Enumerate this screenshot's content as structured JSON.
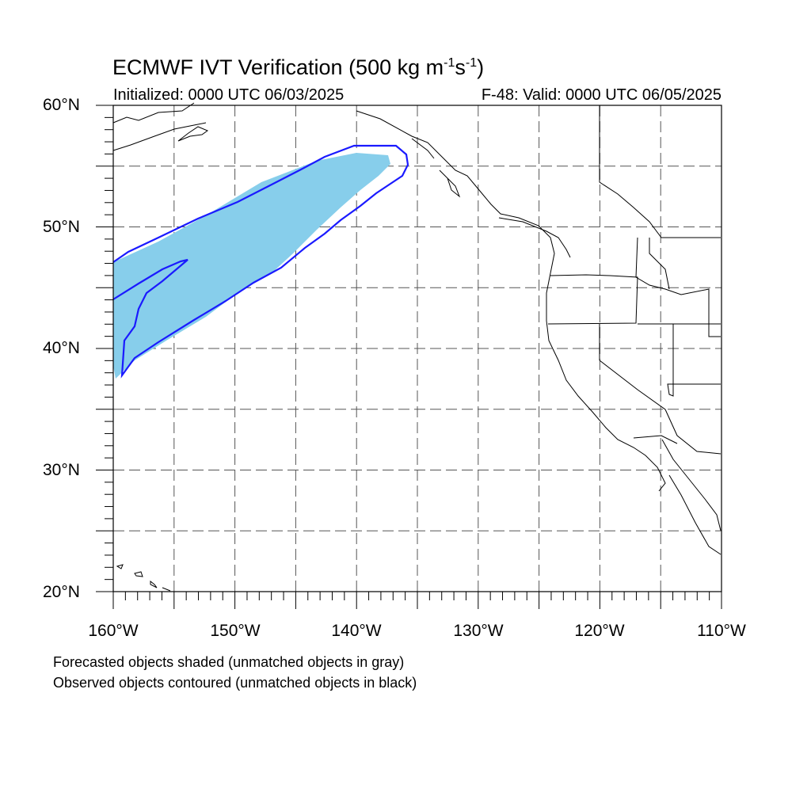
{
  "header": {
    "title_prefix": "ECMWF IVT Verification (500 kg m",
    "title_exp1": "-1",
    "title_mid": "s",
    "title_exp2": "-1",
    "title_suffix": ")",
    "initialized": "Initialized: 0000 UTC 06/03/2025",
    "valid": "F-48: Valid: 0000 UTC 06/05/2025"
  },
  "axes": {
    "lat_labels": [
      "60°N",
      "50°N",
      "40°N",
      "30°N",
      "20°N"
    ],
    "lon_labels": [
      "160°W",
      "150°W",
      "140°W",
      "130°W",
      "120°W",
      "110°W"
    ],
    "lat_range": [
      20,
      60
    ],
    "lon_range": [
      -160,
      -110
    ]
  },
  "colors": {
    "forecast_fill": "#87ceeb",
    "observed_contour": "#1a1aff",
    "grid": "#555555",
    "coastline": "#000000"
  },
  "notes": {
    "line1": "Forecasted objects shaded (unmatched objects in gray)",
    "line2": "Observed objects contoured (unmatched objects in black)"
  }
}
